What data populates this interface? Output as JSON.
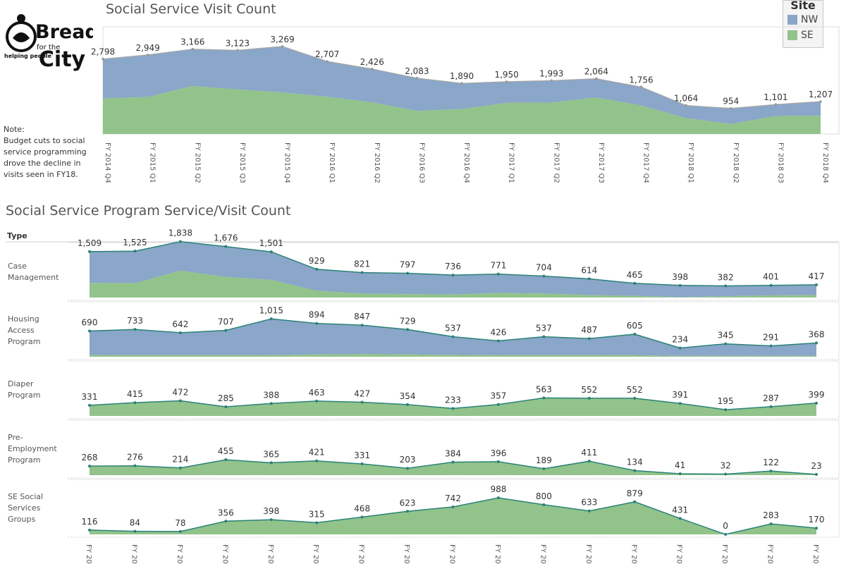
{
  "logo": {
    "line1": "Bread",
    "line2": "for the",
    "line3": "City",
    "tagline": "helping people"
  },
  "top_chart_title": "Social Service Visit Count",
  "bottom_chart_title": "Social Service Program Service/Visit Count",
  "legend": {
    "title": "Site",
    "items": [
      {
        "label": "NW",
        "color": "#8aa6c8"
      },
      {
        "label": "SE",
        "color": "#91c38a"
      }
    ]
  },
  "note": {
    "heading": "Note:",
    "lines": [
      "Budget cuts to social",
      "service programming",
      "drove the decline in",
      "visits seen in FY18."
    ]
  },
  "type_header": "Type",
  "colors": {
    "nw_fill": "#8aa6c8",
    "se_fill": "#91c38a",
    "line_teal": "#2b8278",
    "top_line": "#a8a8a8"
  },
  "chart_data": [
    {
      "type": "area",
      "title": "Social Service Visit Count",
      "stacked": true,
      "x": [
        "FY 2014 Q4",
        "FY 2015 Q1",
        "FY 2015 Q2",
        "FY 2015 Q3",
        "FY 2015 Q4",
        "FY 2016 Q1",
        "FY 2016 Q2",
        "FY 2016 Q3",
        "FY 2016 Q4",
        "FY 2017 Q1",
        "FY 2017 Q2",
        "FY 2017 Q3",
        "FY 2017 Q4",
        "FY 2018 Q1",
        "FY 2018 Q2",
        "FY 2018 Q3",
        "FY 2018 Q4"
      ],
      "totals": [
        2798,
        2949,
        3166,
        3123,
        3269,
        2707,
        2426,
        2083,
        1890,
        1950,
        1993,
        2064,
        1756,
        1064,
        954,
        1101,
        1207
      ],
      "total_labels": [
        "2,798",
        "2,949",
        "3,166",
        "3,123",
        "3,269",
        "2,707",
        "2,426",
        "2,083",
        "1,890",
        "1,950",
        "1,993",
        "2,064",
        "1,756",
        "1,064",
        "954",
        "1,101",
        "1,207"
      ],
      "series": [
        {
          "name": "SE",
          "values": [
            1330,
            1380,
            1790,
            1660,
            1550,
            1390,
            1180,
            860,
            930,
            1160,
            1170,
            1360,
            1060,
            590,
            370,
            670,
            680
          ]
        },
        {
          "name": "NW",
          "values": [
            1468,
            1569,
            1376,
            1463,
            1719,
            1317,
            1246,
            1223,
            960,
            790,
            823,
            704,
            696,
            474,
            584,
            431,
            527
          ]
        }
      ],
      "ylim": [
        0,
        4000
      ],
      "grid": false
    },
    {
      "type": "area",
      "title": "Social Service Program Service/Visit Count",
      "row_header": "Type",
      "x_tick_label": "FY 20",
      "x_count": 17,
      "panels": [
        {
          "name": "Case Management",
          "label_lines": [
            "Case",
            "Management"
          ],
          "totals": [
            1509,
            1525,
            1838,
            1676,
            1501,
            929,
            821,
            797,
            736,
            771,
            704,
            614,
            465,
            398,
            382,
            401,
            417
          ],
          "total_labels": [
            "1,509",
            "1,525",
            "1,838",
            "1,676",
            "1,501",
            "929",
            "821",
            "797",
            "736",
            "771",
            "704",
            "614",
            "465",
            "398",
            "382",
            "401",
            "417"
          ],
          "se_values": [
            480,
            470,
            880,
            680,
            580,
            220,
            130,
            110,
            100,
            150,
            130,
            80,
            50,
            10,
            40,
            70,
            80
          ],
          "ylim": [
            0,
            1900
          ]
        },
        {
          "name": "Housing Access Program",
          "label_lines": [
            "Housing",
            "Access",
            "Program"
          ],
          "totals": [
            690,
            733,
            642,
            707,
            1015,
            894,
            847,
            729,
            537,
            426,
            537,
            487,
            605,
            234,
            345,
            291,
            368
          ],
          "total_labels": [
            "690",
            "733",
            "642",
            "707",
            "1,015",
            "894",
            "847",
            "729",
            "537",
            "426",
            "537",
            "487",
            "605",
            "234",
            "345",
            "291",
            "368"
          ],
          "se_values": [
            40,
            40,
            40,
            40,
            40,
            60,
            70,
            60,
            50,
            40,
            40,
            40,
            40,
            20,
            20,
            20,
            20
          ],
          "ylim": [
            0,
            1550
          ]
        },
        {
          "name": "Diaper Program",
          "label_lines": [
            "Diaper",
            "Program"
          ],
          "totals": [
            331,
            415,
            472,
            285,
            388,
            463,
            427,
            354,
            233,
            357,
            563,
            552,
            552,
            391,
            195,
            287,
            399
          ],
          "total_labels": [
            "331",
            "415",
            "472",
            "285",
            "388",
            "463",
            "427",
            "354",
            "233",
            "357",
            "563",
            "552",
            "552",
            "391",
            "195",
            "287",
            "399"
          ],
          "ylim": [
            0,
            1800
          ]
        },
        {
          "name": "Pre-Employment Program",
          "label_lines": [
            "Pre-",
            "Employment",
            "Program"
          ],
          "totals": [
            268,
            276,
            214,
            455,
            365,
            421,
            331,
            203,
            384,
            396,
            189,
            411,
            134,
            41,
            32,
            122,
            23
          ],
          "total_labels": [
            "268",
            "276",
            "214",
            "455",
            "365",
            "421",
            "331",
            "203",
            "384",
            "396",
            "189",
            "411",
            "134",
            "41",
            "32",
            "122",
            "23"
          ],
          "ylim": [
            0,
            1700
          ]
        },
        {
          "name": "SE Social Services Groups",
          "label_lines": [
            "SE Social",
            "Services",
            "Groups"
          ],
          "totals": [
            116,
            84,
            78,
            356,
            398,
            315,
            468,
            623,
            742,
            988,
            800,
            633,
            879,
            431,
            0,
            283,
            170
          ],
          "total_labels": [
            "116",
            "84",
            "78",
            "356",
            "398",
            "315",
            "468",
            "623",
            "742",
            "988",
            "800",
            "633",
            "879",
            "431",
            "0",
            "283",
            "170"
          ],
          "ylim": [
            0,
            1560
          ]
        }
      ]
    }
  ]
}
